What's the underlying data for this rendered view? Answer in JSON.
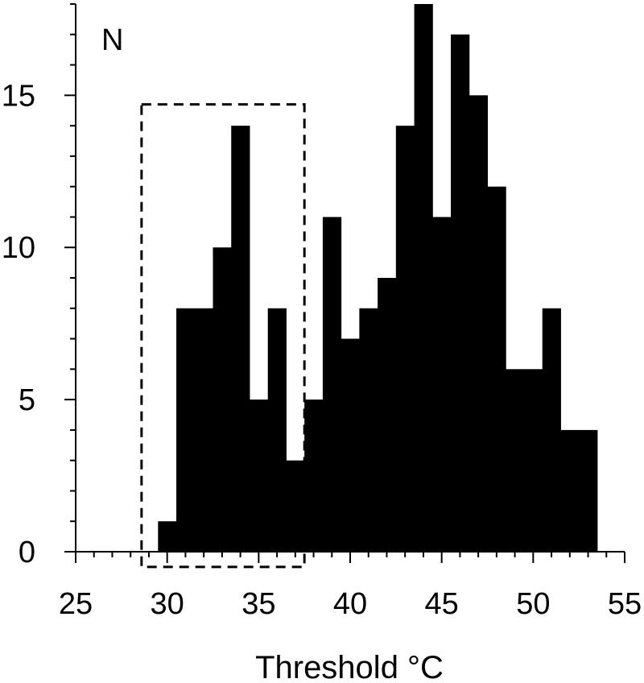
{
  "chart_data": {
    "type": "bar",
    "title": "",
    "xlabel": "Threshold °C",
    "ylabel": "N",
    "xlim": [
      25,
      55
    ],
    "ylim": [
      0,
      18
    ],
    "bin_width": 1,
    "bins": [
      {
        "start": 29.5,
        "value": 1
      },
      {
        "start": 30.5,
        "value": 8
      },
      {
        "start": 31.5,
        "value": 8
      },
      {
        "start": 32.5,
        "value": 10
      },
      {
        "start": 33.5,
        "value": 14
      },
      {
        "start": 34.5,
        "value": 5
      },
      {
        "start": 35.5,
        "value": 8
      },
      {
        "start": 36.5,
        "value": 3
      },
      {
        "start": 37.5,
        "value": 5
      },
      {
        "start": 38.5,
        "value": 11
      },
      {
        "start": 39.5,
        "value": 7
      },
      {
        "start": 40.5,
        "value": 8
      },
      {
        "start": 41.5,
        "value": 9
      },
      {
        "start": 42.5,
        "value": 14
      },
      {
        "start": 43.5,
        "value": 18
      },
      {
        "start": 44.5,
        "value": 11
      },
      {
        "start": 45.5,
        "value": 17
      },
      {
        "start": 46.5,
        "value": 15
      },
      {
        "start": 47.5,
        "value": 12
      },
      {
        "start": 48.5,
        "value": 6
      },
      {
        "start": 49.5,
        "value": 6
      },
      {
        "start": 50.5,
        "value": 8
      },
      {
        "start": 51.5,
        "value": 4
      },
      {
        "start": 52.5,
        "value": 4
      }
    ],
    "x_ticks": [
      25,
      30,
      35,
      40,
      45,
      50,
      55
    ],
    "x_tick_labels": [
      "25",
      "30",
      "35",
      "40",
      "45",
      "50",
      "55"
    ],
    "y_ticks": [
      0,
      5,
      10,
      15
    ],
    "y_tick_labels": [
      "0",
      "5",
      "10",
      "15"
    ],
    "highlight_region": {
      "x_range": [
        28.6,
        37.5
      ],
      "y_range": [
        -0.5,
        14.7
      ],
      "style": "dashed"
    },
    "bar_color": "#000000",
    "grid": false
  }
}
